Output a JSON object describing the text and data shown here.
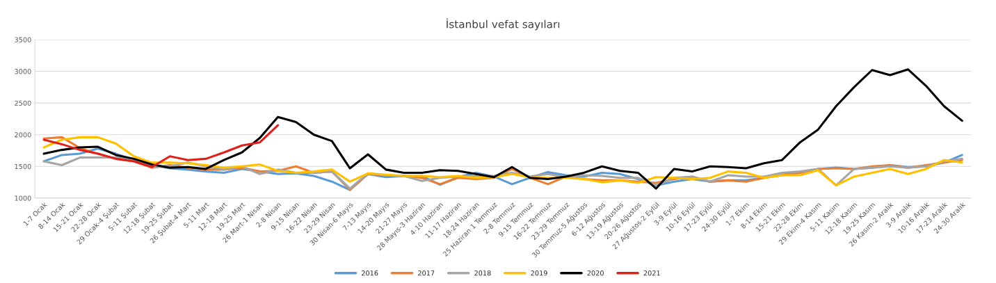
{
  "chart_data": {
    "type": "line",
    "title": "İstanbul vefat sayıları",
    "categories": [
      "1-7 Ocak",
      "8-14 Ocak",
      "15-21 Ocak",
      "22-28 Ocak",
      "29 Ocak-4 Şubat",
      "5-11 Şubat",
      "12-18 Şubat",
      "19-25 Şubat",
      "26 Şubat-4 Mart",
      "5-11 Mart",
      "12-18 Mart",
      "19-25 Mart",
      "26 Mart-1 Nisan",
      "2-8 Nisan",
      "9-15 Nisan",
      "16-22 Nisan",
      "23-29 Nisan",
      "30 Nisan-6 Mayıs",
      "7-13 Mayıs",
      "14-20 Mayıs",
      "21-27 Mayıs",
      "28 Mayıs-3 Haziran",
      "4-10 Haziran",
      "11-17 Haziran",
      "18-24 Haziran",
      "25 Haziran 1 Temmuz",
      "2-8 Temmuz",
      "9-15 Temmuz",
      "16-22 Temmuz",
      "23-29 Temmuz",
      "30 Temmuz-5 Ağustos",
      "6-12 Ağustos",
      "13-19 Ağustos",
      "20-26 Ağustos",
      "27 Ağustos-2 Eylül",
      "3-9 Eylül",
      "10-16 Eylül",
      "17-23 Eylül",
      "24-30 Eylül",
      "1-7 Ekim",
      "8-14 Ekim",
      "15-21 Ekim",
      "22-28 Ekim",
      "29 Ekim-4 Kasım",
      "5-11 Kasım",
      "12-18 Kasım",
      "19-25 Kasım",
      "26 Kasım-2 Aralık",
      "3-9 Aralık",
      "10-16 Aralık",
      "17-23 Aralık",
      "24-30 Aralık"
    ],
    "series": [
      {
        "name": "2016",
        "color": "#5b9bd5",
        "values": [
          1580,
          1680,
          1700,
          1780,
          1700,
          1600,
          1520,
          1470,
          1450,
          1420,
          1400,
          1460,
          1420,
          1380,
          1390,
          1350,
          1260,
          1130,
          1380,
          1330,
          1350,
          1350,
          1210,
          1330,
          1400,
          1340,
          1220,
          1320,
          1410,
          1360,
          1340,
          1400,
          1380,
          1300,
          1200,
          1260,
          1300,
          1260,
          1280,
          1280,
          1320,
          1380,
          1400,
          1460,
          1480,
          1460,
          1480,
          1520,
          1490,
          1500,
          1560,
          1680
        ]
      },
      {
        "name": "2017",
        "color": "#ed7d31",
        "values": [
          1940,
          1960,
          1790,
          1700,
          1620,
          1580,
          1480,
          1520,
          1480,
          1450,
          1450,
          1480,
          1420,
          1430,
          1500,
          1400,
          1420,
          1130,
          1380,
          1360,
          1350,
          1320,
          1220,
          1320,
          1300,
          1320,
          1460,
          1320,
          1220,
          1340,
          1300,
          1280,
          1280,
          1260,
          1240,
          1300,
          1340,
          1260,
          1280,
          1260,
          1320,
          1360,
          1400,
          1460,
          1470,
          1460,
          1500,
          1520,
          1480,
          1520,
          1560,
          1600
        ]
      },
      {
        "name": "2018",
        "color": "#a5a5a5",
        "values": [
          1580,
          1520,
          1640,
          1640,
          1640,
          1600,
          1490,
          1500,
          1560,
          1500,
          1450,
          1500,
          1380,
          1450,
          1400,
          1400,
          1420,
          1150,
          1390,
          1360,
          1350,
          1270,
          1320,
          1340,
          1350,
          1350,
          1400,
          1340,
          1380,
          1330,
          1360,
          1350,
          1320,
          1320,
          1200,
          1320,
          1340,
          1260,
          1360,
          1340,
          1340,
          1400,
          1420,
          1460,
          1200,
          1460,
          1480,
          1500,
          1480,
          1500,
          1580,
          1620
        ]
      },
      {
        "name": "2019",
        "color": "#ffc000",
        "values": [
          1800,
          1920,
          1960,
          1960,
          1860,
          1660,
          1560,
          1560,
          1550,
          1520,
          1480,
          1500,
          1530,
          1430,
          1400,
          1420,
          1450,
          1260,
          1390,
          1370,
          1350,
          1350,
          1330,
          1350,
          1320,
          1330,
          1380,
          1330,
          1320,
          1320,
          1300,
          1250,
          1280,
          1240,
          1330,
          1320,
          1300,
          1320,
          1420,
          1400,
          1320,
          1360,
          1360,
          1440,
          1200,
          1340,
          1400,
          1460,
          1380,
          1460,
          1600,
          1560
        ]
      },
      {
        "name": "2020",
        "color": "#000000",
        "values": [
          1700,
          1760,
          1800,
          1810,
          1680,
          1620,
          1530,
          1480,
          1490,
          1460,
          1600,
          1720,
          1950,
          2280,
          2200,
          2000,
          1900,
          1470,
          1690,
          1450,
          1400,
          1400,
          1440,
          1430,
          1380,
          1330,
          1490,
          1320,
          1300,
          1340,
          1400,
          1500,
          1430,
          1400,
          1150,
          1460,
          1420,
          1500,
          1490,
          1470,
          1550,
          1600,
          1880,
          2080,
          2450,
          2750,
          3020,
          2940,
          3030,
          2770,
          2450,
          2220
        ]
      },
      {
        "name": "2021",
        "color": "#e0201b",
        "values": [
          1920,
          1850,
          1760,
          1700,
          1620,
          1580,
          1490,
          1660,
          1600,
          1620,
          1720,
          1830,
          1880,
          2150,
          null,
          null,
          null,
          null,
          null,
          null,
          null,
          null,
          null,
          null,
          null,
          null,
          null,
          null,
          null,
          null,
          null,
          null,
          null,
          null,
          null,
          null,
          null,
          null,
          null,
          null,
          null,
          null,
          null,
          null,
          null,
          null,
          null,
          null,
          null,
          null,
          null,
          null
        ]
      }
    ],
    "ylim": [
      1000,
      3500
    ],
    "yticks": [
      1000,
      1500,
      2000,
      2500,
      3000,
      3500
    ],
    "grid": "y",
    "legend": "bottom",
    "line_style": "solid",
    "marker": "none"
  }
}
